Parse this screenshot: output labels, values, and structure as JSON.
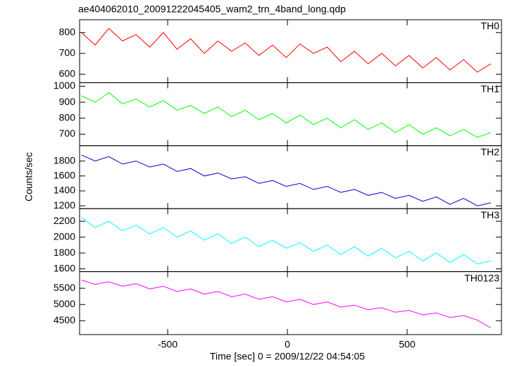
{
  "title": "ae404062010_20091222045405_wam2_trn_4band_long.qdp",
  "xlabel": "Time [sec] 0 = 2009/12/22 04:54:05",
  "ylabel": "Counts/sec",
  "chart_data": [
    {
      "type": "line",
      "xlim": [
        -868,
        894
      ],
      "xticks": [
        -500,
        0,
        500
      ],
      "ylim": [
        559,
        862
      ],
      "yticks": [
        600,
        700,
        800
      ],
      "x": [
        -860,
        -803,
        -746,
        -689,
        -632,
        -575,
        -518,
        -461,
        -404,
        -347,
        -290,
        -233,
        -176,
        -119,
        -62,
        -5,
        52,
        109,
        166,
        223,
        280,
        337,
        394,
        451,
        508,
        565,
        622,
        679,
        736,
        793,
        850
      ],
      "series": [
        {
          "name": "TH0",
          "color": "#ff0000",
          "values": [
            800,
            740,
            820,
            760,
            790,
            730,
            800,
            720,
            770,
            700,
            760,
            710,
            750,
            690,
            740,
            680,
            745,
            700,
            730,
            660,
            710,
            650,
            700,
            640,
            690,
            630,
            680,
            620,
            670,
            610,
            650
          ]
        }
      ]
    },
    {
      "type": "line",
      "xlim": [
        -868,
        894
      ],
      "xticks": [
        -500,
        0,
        500
      ],
      "ylim": [
        628,
        1022
      ],
      "yticks": [
        700,
        800,
        900,
        1000
      ],
      "x": [
        -860,
        -803,
        -746,
        -689,
        -632,
        -575,
        -518,
        -461,
        -404,
        -347,
        -290,
        -233,
        -176,
        -119,
        -62,
        -5,
        52,
        109,
        166,
        223,
        280,
        337,
        394,
        451,
        508,
        565,
        622,
        679,
        736,
        793,
        850
      ],
      "series": [
        {
          "name": "TH1",
          "color": "#00ff00",
          "values": [
            940,
            900,
            960,
            890,
            920,
            870,
            910,
            850,
            880,
            830,
            870,
            810,
            850,
            790,
            830,
            770,
            820,
            760,
            800,
            740,
            790,
            730,
            770,
            710,
            760,
            700,
            740,
            690,
            730,
            680,
            710
          ]
        }
      ]
    },
    {
      "type": "line",
      "xlim": [
        -868,
        894
      ],
      "xticks": [
        -500,
        0,
        500
      ],
      "ylim": [
        1162,
        2006
      ],
      "yticks": [
        1200,
        1400,
        1600,
        1800
      ],
      "x": [
        -860,
        -803,
        -746,
        -689,
        -632,
        -575,
        -518,
        -461,
        -404,
        -347,
        -290,
        -233,
        -176,
        -119,
        -62,
        -5,
        52,
        109,
        166,
        223,
        280,
        337,
        394,
        451,
        508,
        565,
        622,
        679,
        736,
        793,
        850
      ],
      "series": [
        {
          "name": "TH2",
          "color": "#0000cc",
          "values": [
            1880,
            1800,
            1860,
            1760,
            1800,
            1720,
            1760,
            1660,
            1700,
            1600,
            1640,
            1560,
            1590,
            1500,
            1540,
            1460,
            1500,
            1420,
            1460,
            1380,
            1420,
            1340,
            1380,
            1300,
            1340,
            1260,
            1320,
            1220,
            1300,
            1200,
            1240
          ]
        }
      ]
    },
    {
      "type": "line",
      "xlim": [
        -868,
        894
      ],
      "xticks": [
        -500,
        0,
        500
      ],
      "ylim": [
        1565,
        2359
      ],
      "yticks": [
        1600,
        1800,
        2000,
        2200
      ],
      "x": [
        -860,
        -803,
        -746,
        -689,
        -632,
        -575,
        -518,
        -461,
        -404,
        -347,
        -290,
        -233,
        -176,
        -119,
        -62,
        -5,
        52,
        109,
        166,
        223,
        280,
        337,
        394,
        451,
        508,
        565,
        622,
        679,
        736,
        793,
        850
      ],
      "series": [
        {
          "name": "TH3",
          "color": "#00ffff",
          "values": [
            2250,
            2120,
            2200,
            2080,
            2150,
            2040,
            2120,
            2000,
            2080,
            1960,
            2040,
            1920,
            2000,
            1880,
            1960,
            1860,
            1930,
            1820,
            1900,
            1780,
            1880,
            1760,
            1860,
            1740,
            1820,
            1700,
            1800,
            1680,
            1780,
            1660,
            1700
          ]
        }
      ]
    },
    {
      "type": "line",
      "xlim": [
        -868,
        894
      ],
      "xticks": [
        -500,
        0,
        500
      ],
      "ylim": [
        4074,
        6011
      ],
      "yticks": [
        4500,
        5000,
        5500
      ],
      "x": [
        -860,
        -803,
        -746,
        -689,
        -632,
        -575,
        -518,
        -461,
        -404,
        -347,
        -290,
        -233,
        -176,
        -119,
        -62,
        -5,
        52,
        109,
        166,
        223,
        280,
        337,
        394,
        451,
        508,
        565,
        622,
        679,
        736,
        793,
        850
      ],
      "series": [
        {
          "name": "TH0123",
          "color": "#ff00ff",
          "values": [
            5750,
            5620,
            5700,
            5560,
            5640,
            5480,
            5560,
            5400,
            5480,
            5320,
            5400,
            5240,
            5320,
            5160,
            5240,
            5080,
            5160,
            5000,
            5080,
            4920,
            4980,
            4840,
            4900,
            4760,
            4820,
            4680,
            4740,
            4600,
            4660,
            4520,
            4280
          ]
        }
      ]
    }
  ]
}
